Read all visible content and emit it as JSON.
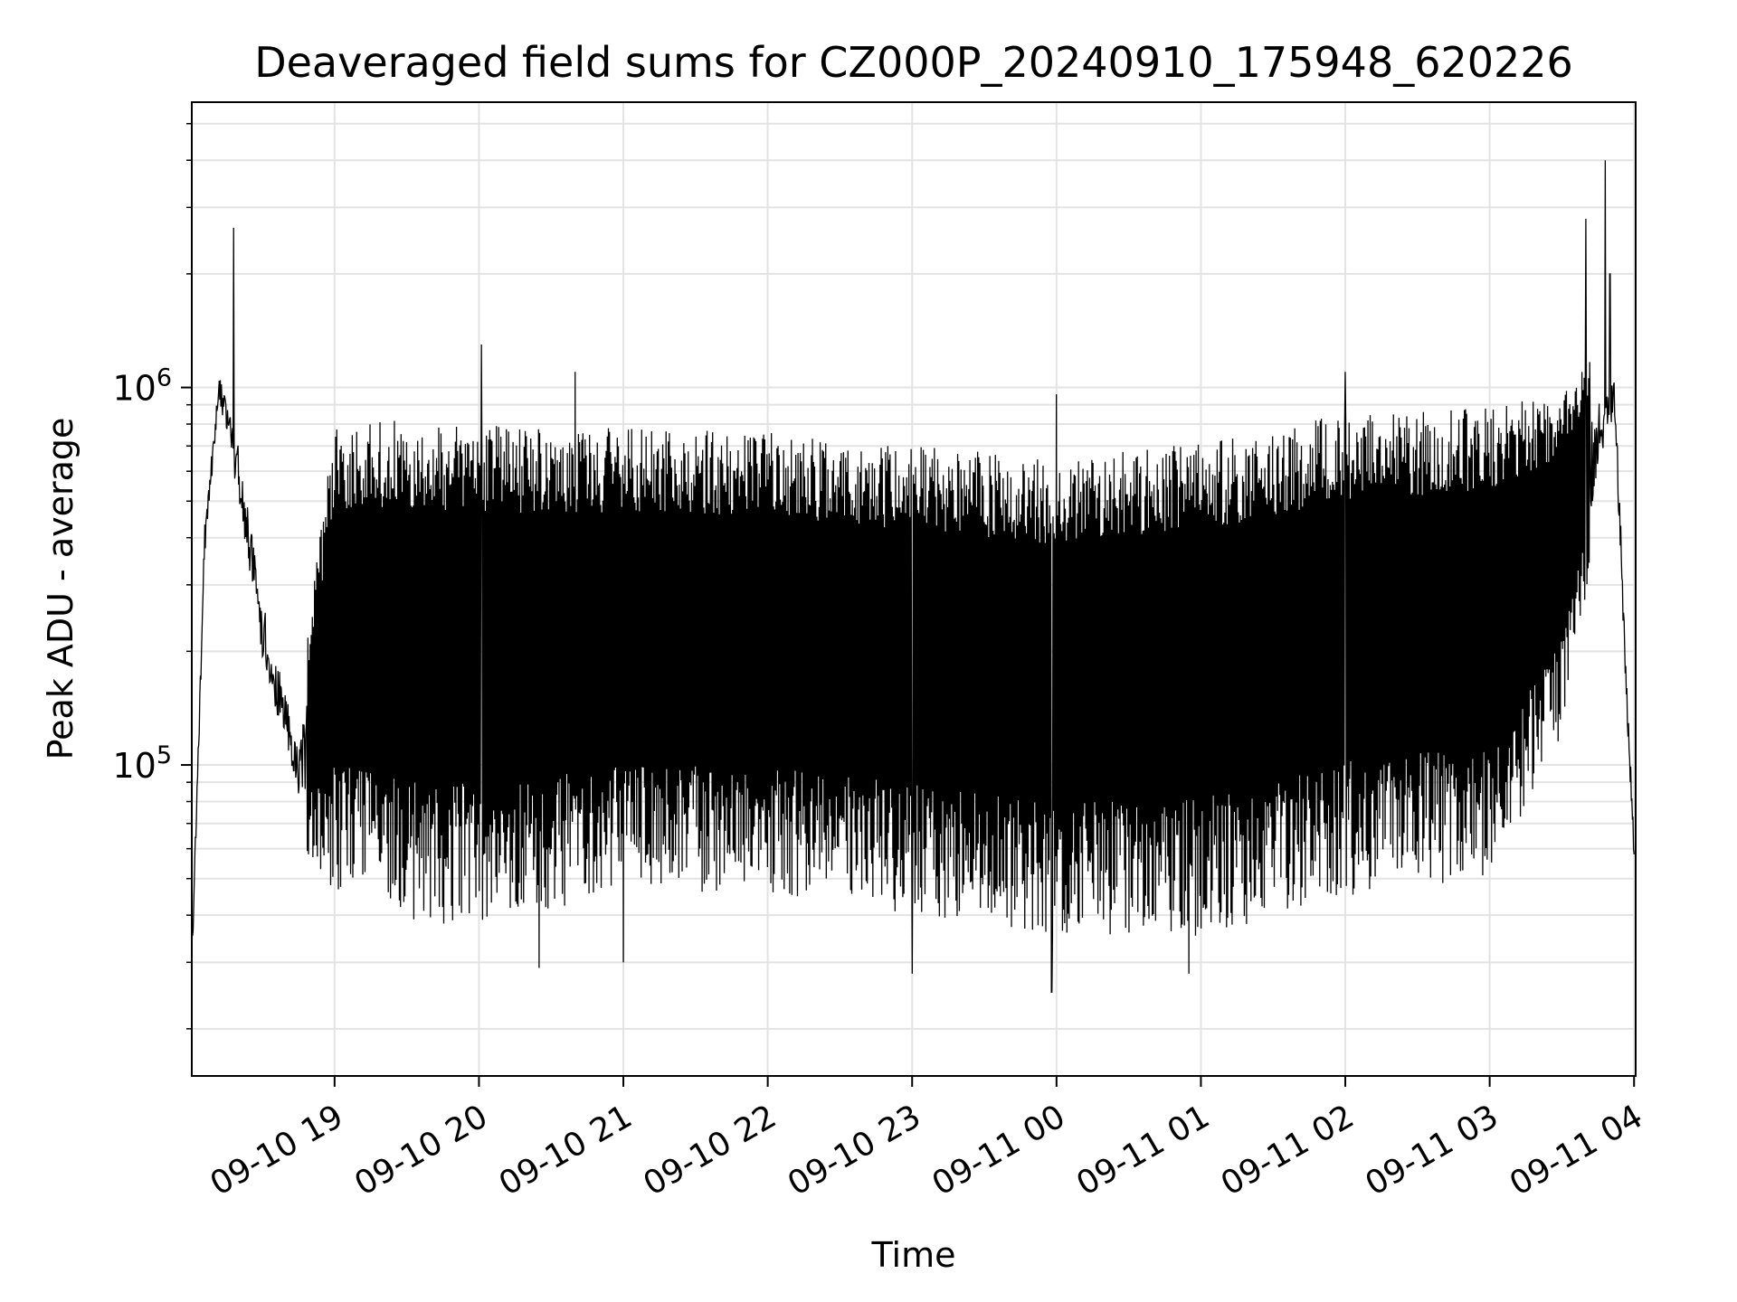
{
  "chart_data": {
    "type": "line",
    "title": "Deaveraged field sums for CZ000P_20240910_175948_620226",
    "xlabel": "Time",
    "ylabel": "Peak ADU - average",
    "x_ticks": [
      "09-10 19",
      "09-10 20",
      "09-10 21",
      "09-10 22",
      "09-10 23",
      "09-11 00",
      "09-11 01",
      "09-11 02",
      "09-11 03",
      "09-11 04"
    ],
    "y_ticks": [
      {
        "value": 100000,
        "base": "10",
        "exp": "5"
      },
      {
        "value": 1000000,
        "base": "10",
        "exp": "6"
      }
    ],
    "xlim": [
      "2024-09-10 18:00:40",
      "2024-09-11 04:00:40"
    ],
    "ylim": [
      15000,
      5700000
    ],
    "yscale": "log",
    "grid": true,
    "line_color": "#000000",
    "envelope_points": [
      {
        "x": "2024-09-10 18:01",
        "low": 30000,
        "high": 40000
      },
      {
        "x": "2024-09-10 18:06",
        "low": 300000,
        "high": 500000
      },
      {
        "x": "2024-09-10 18:12",
        "low": 850000,
        "high": 1200000
      },
      {
        "x": "2024-09-10 18:20",
        "low": 400000,
        "high": 900000
      },
      {
        "x": "2024-09-10 18:30",
        "low": 150000,
        "high": 350000
      },
      {
        "x": "2024-09-10 18:45",
        "low": 60000,
        "high": 150000
      },
      {
        "x": "2024-09-10 19:00",
        "low": 45000,
        "high": 800000
      },
      {
        "x": "2024-09-10 19:30",
        "low": 38000,
        "high": 830000
      },
      {
        "x": "2024-09-10 20:00",
        "low": 38000,
        "high": 800000
      },
      {
        "x": "2024-09-10 21:00",
        "low": 45000,
        "high": 780000
      },
      {
        "x": "2024-09-10 22:00",
        "low": 45000,
        "high": 760000
      },
      {
        "x": "2024-09-10 23:00",
        "low": 40000,
        "high": 700000
      },
      {
        "x": "2024-09-11 00:00",
        "low": 35000,
        "high": 650000
      },
      {
        "x": "2024-09-11 01:00",
        "low": 35000,
        "high": 720000
      },
      {
        "x": "2024-09-11 02:00",
        "low": 45000,
        "high": 850000
      },
      {
        "x": "2024-09-11 03:00",
        "low": 50000,
        "high": 900000
      },
      {
        "x": "2024-09-11 03:30",
        "low": 120000,
        "high": 950000
      },
      {
        "x": "2024-09-11 03:45",
        "low": 400000,
        "high": 1300000
      },
      {
        "x": "2024-09-11 03:52",
        "low": 700000,
        "high": 1300000
      },
      {
        "x": "2024-09-11 03:56",
        "low": 150000,
        "high": 300000
      },
      {
        "x": "2024-09-11 04:00",
        "low": 50000,
        "high": 70000
      }
    ],
    "spikes": [
      {
        "x": "2024-09-10 18:18",
        "value": 2650000
      },
      {
        "x": "2024-09-10 20:01",
        "value": 1300000
      },
      {
        "x": "2024-09-10 20:40",
        "value": 1100000
      },
      {
        "x": "2024-09-11 00:00",
        "value": 960000
      },
      {
        "x": "2024-09-11 02:00",
        "value": 1100000
      },
      {
        "x": "2024-09-11 03:40",
        "value": 2800000
      },
      {
        "x": "2024-09-11 03:48",
        "value": 4000000
      },
      {
        "x": "2024-09-11 03:50",
        "value": 2000000
      }
    ],
    "dips": [
      {
        "x": "2024-09-10 20:25",
        "value": 29000
      },
      {
        "x": "2024-09-10 21:00",
        "value": 30000
      },
      {
        "x": "2024-09-10 23:00",
        "value": 28000
      },
      {
        "x": "2024-09-10 23:58",
        "value": 25000
      },
      {
        "x": "2024-09-11 00:55",
        "value": 28000
      }
    ]
  }
}
